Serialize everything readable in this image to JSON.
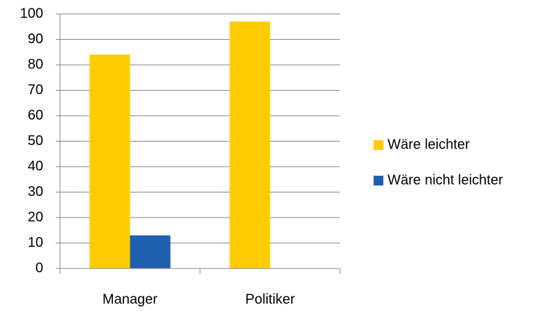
{
  "chart_data": {
    "type": "bar",
    "categories": [
      "Manager",
      "Politiker"
    ],
    "series": [
      {
        "name": "Wäre leichter",
        "color": "#ffcc00",
        "values": [
          84,
          97
        ]
      },
      {
        "name": "Wäre nicht leichter",
        "color": "#1f5faf",
        "values": [
          13,
          0
        ]
      }
    ],
    "ylim": [
      0,
      100
    ],
    "yticks": [
      0,
      10,
      20,
      30,
      40,
      50,
      60,
      70,
      80,
      90,
      100
    ],
    "grid": true,
    "legend": "right"
  }
}
